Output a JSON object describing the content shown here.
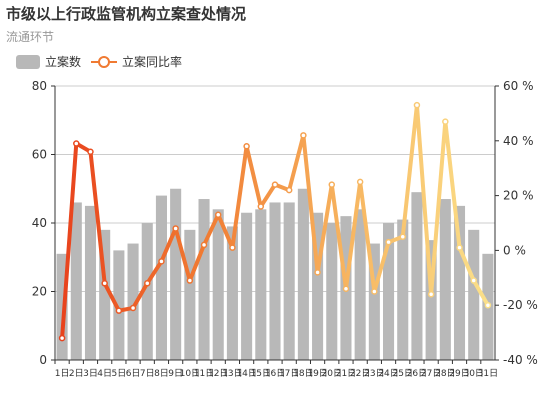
{
  "title": "市级以上行政监管机构立案查处情况",
  "subtitle": "流通环节",
  "legend": {
    "bar_label": "立案数",
    "line_label": "立案同比率"
  },
  "colors": {
    "bar": "#b8b8b8",
    "line_gradient": [
      "#e8401c",
      "#f07a32",
      "#f7b560",
      "#fbe28c"
    ],
    "grid": "#cccccc"
  },
  "chart_data": {
    "type": "bar",
    "categories": [
      "1日",
      "2日",
      "3日",
      "4日",
      "5日",
      "6日",
      "7日",
      "8日",
      "9日",
      "10日",
      "11日",
      "12日",
      "13日",
      "14日",
      "15日",
      "16日",
      "17日",
      "18日",
      "19日",
      "20日",
      "21日",
      "22日",
      "23日",
      "24日",
      "25日",
      "26日",
      "27日",
      "28日",
      "29日",
      "30日",
      "31日"
    ],
    "series": [
      {
        "name": "立案数",
        "type": "bar",
        "axis": "left",
        "values": [
          31,
          46,
          45,
          38,
          32,
          34,
          40,
          48,
          50,
          38,
          47,
          44,
          39,
          43,
          44,
          46,
          46,
          50,
          43,
          40,
          42,
          44,
          34,
          40,
          41,
          49,
          35,
          47,
          45,
          38,
          31
        ]
      },
      {
        "name": "立案同比率",
        "type": "line",
        "axis": "right",
        "unit": "%",
        "values": [
          -32,
          39,
          36,
          -12,
          -22,
          -21,
          -12,
          -4,
          8,
          -11,
          2,
          13,
          1,
          38,
          16,
          24,
          22,
          42,
          -8,
          24,
          -14,
          25,
          -15,
          3,
          5,
          53,
          -16,
          47,
          1,
          -11,
          -20
        ]
      }
    ],
    "yleft": {
      "ylim": [
        0,
        80
      ],
      "ticks": [
        "0",
        "20",
        "40",
        "60",
        "80"
      ]
    },
    "yright": {
      "ylim": [
        -40,
        60
      ],
      "ticks": [
        "-40 %",
        "-20 %",
        "0 %",
        "20 %",
        "40 %",
        "60 %"
      ]
    },
    "grid": true,
    "legend_position": "top-left"
  }
}
